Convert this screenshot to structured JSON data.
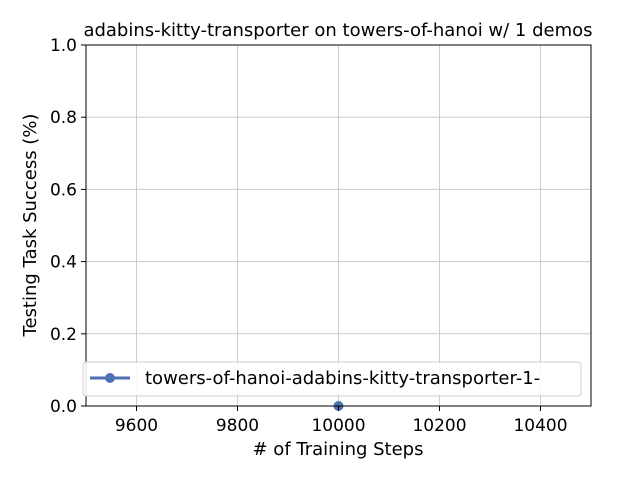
{
  "chart_data": {
    "type": "line",
    "title": "adabins-kitty-transporter on towers-of-hanoi w/ 1 demos",
    "xlabel": "# of Training Steps",
    "ylabel": "Testing Task Success (%)",
    "xlim": [
      9500,
      10500
    ],
    "ylim": [
      0.0,
      1.0
    ],
    "xticks": [
      9600,
      9800,
      10000,
      10200,
      10400
    ],
    "yticks": [
      0.0,
      0.2,
      0.4,
      0.6,
      0.8,
      1.0
    ],
    "ytick_labels": [
      "0.0",
      "0.2",
      "0.4",
      "0.6",
      "0.8",
      "1.0"
    ],
    "grid": true,
    "legend_position": "lower-left",
    "series": [
      {
        "name": "towers-of-hanoi-adabins-kitty-transporter-1-",
        "color": "#4c72b0",
        "marker": "circle",
        "x": [
          10000
        ],
        "y": [
          0.0
        ]
      }
    ]
  }
}
